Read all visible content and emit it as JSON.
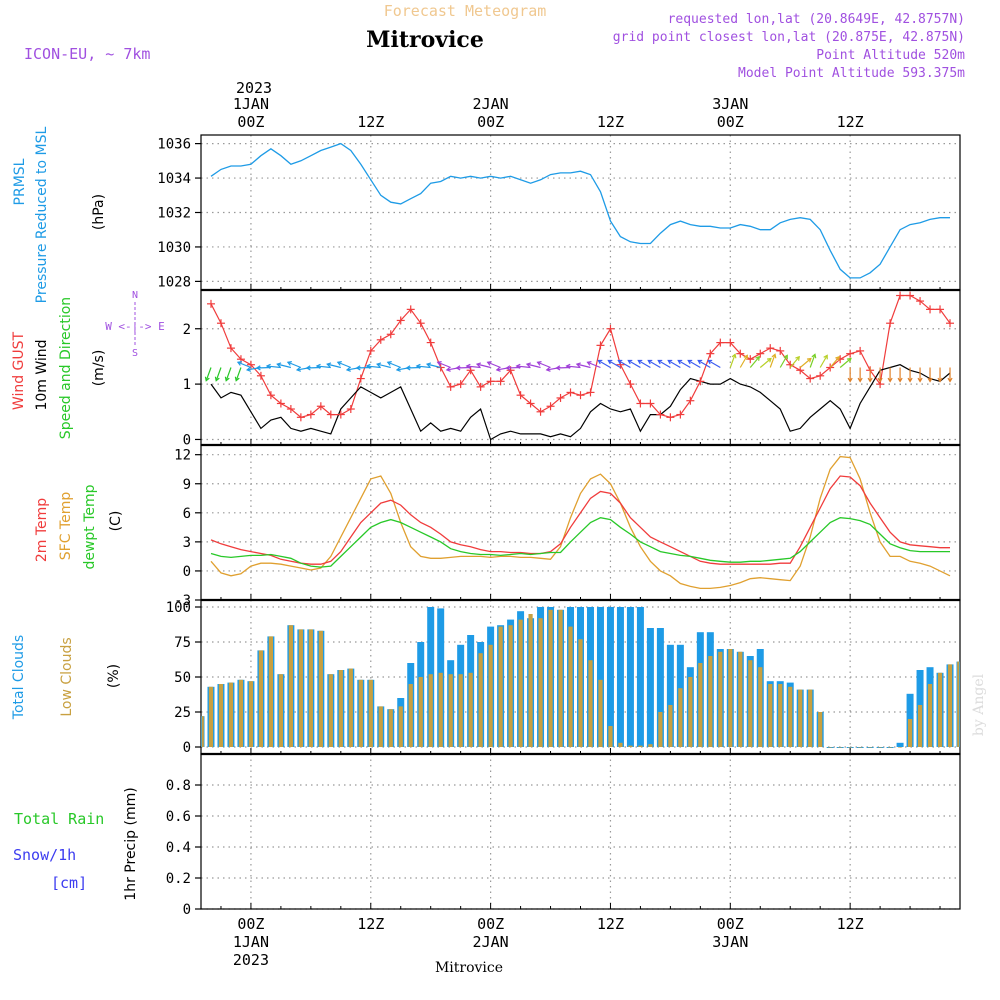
{
  "header": {
    "title": "Mitrovice",
    "subtitle": "Forecast Meteogram",
    "model": "ICON-EU, ~ 7km",
    "requested": "requested lon,lat (20.8649E, 42.8757N)",
    "gridpoint": "grid point closest lon,lat (20.875E, 42.875N)",
    "point_alt": "Point Altitude 520m",
    "model_alt": "Model Point Altitude 593.375m",
    "footer_name": "Mitrovice",
    "watermark": "by Angel"
  },
  "time_axis": {
    "year": "2023",
    "top_labels": [
      {
        "hour": 0,
        "l1": "1JAN",
        "l2": "00Z"
      },
      {
        "hour": 12,
        "l1": "",
        "l2": "12Z"
      },
      {
        "hour": 24,
        "l1": "2JAN",
        "l2": "00Z"
      },
      {
        "hour": 36,
        "l1": "",
        "l2": "12Z"
      },
      {
        "hour": 48,
        "l1": "3JAN",
        "l2": "00Z"
      },
      {
        "hour": 60,
        "l1": "",
        "l2": "12Z"
      }
    ],
    "bottom_labels": [
      {
        "hour": 0,
        "l1": "00Z",
        "l2": "1JAN",
        "l3": "2023"
      },
      {
        "hour": 12,
        "l1": "12Z",
        "l2": "",
        "l3": ""
      },
      {
        "hour": 24,
        "l1": "00Z",
        "l2": "2JAN",
        "l3": ""
      },
      {
        "hour": 36,
        "l1": "12Z",
        "l2": "",
        "l3": ""
      },
      {
        "hour": 48,
        "l1": "00Z",
        "l2": "3JAN",
        "l3": ""
      },
      {
        "hour": 60,
        "l1": "12Z",
        "l2": "",
        "l3": ""
      }
    ],
    "x_range_hours": [
      -5,
      71
    ]
  },
  "panels": {
    "pressure": {
      "label1": "PRMSL",
      "label2": "Pressure Reduced to MSL",
      "unit": "(hPa)"
    },
    "wind": {
      "label_gust": "Wind GUST",
      "label_wind": "10m Wind",
      "label_dir": "Speed and Direction",
      "unit": "(m/s)",
      "compass_n": "N",
      "compass_s": "S",
      "compass_ew": "W <-|-> E"
    },
    "temp": {
      "label_t2m": "2m Temp",
      "label_sfc": "SFC Temp",
      "label_dew": "dewpt Temp",
      "unit": "(C)"
    },
    "cloud": {
      "label_total": "Total Clouds",
      "label_low": "Low Clouds",
      "unit": "(%)"
    },
    "precip": {
      "label_rain": "Total  Rain",
      "label_snow1": "Snow/1h",
      "label_snow2": "[cm]",
      "unit": "1hr Precip (mm)"
    }
  },
  "colors": {
    "pressure": "#1e9be6",
    "gust": "#f03c3c",
    "wind10m": "#000000",
    "t2m": "#f03c3c",
    "sfc": "#e0a030",
    "dew": "#28c828",
    "total_cloud": "#1e9be6",
    "low_cloud": "#c8a040",
    "purple": "#a050e0",
    "rain_label": "#28c828",
    "snow_label": "#3c3cf0"
  },
  "chart_data": [
    {
      "type": "line",
      "name": "pressure",
      "ylim": [
        1027.5,
        1036.5
      ],
      "yticks": [
        1028,
        1030,
        1032,
        1034,
        1036
      ],
      "x": [
        -4,
        -3,
        -2,
        -1,
        0,
        1,
        2,
        3,
        4,
        5,
        6,
        7,
        8,
        9,
        10,
        11,
        12,
        13,
        14,
        15,
        16,
        17,
        18,
        19,
        20,
        21,
        22,
        23,
        24,
        25,
        26,
        27,
        28,
        29,
        30,
        31,
        32,
        33,
        34,
        35,
        36,
        37,
        38,
        39,
        40,
        41,
        42,
        43,
        44,
        45,
        46,
        47,
        48,
        49,
        50,
        51,
        52,
        53,
        54,
        55,
        56,
        57,
        58,
        59,
        60,
        61,
        62,
        63,
        64,
        65,
        66,
        67,
        68,
        69,
        70
      ],
      "y": [
        1034.1,
        1034.5,
        1034.7,
        1034.7,
        1034.8,
        1035.3,
        1035.7,
        1035.3,
        1034.8,
        1035.0,
        1035.3,
        1035.6,
        1035.8,
        1036.0,
        1035.6,
        1034.8,
        1033.9,
        1033.0,
        1032.6,
        1032.5,
        1032.8,
        1033.1,
        1033.7,
        1033.8,
        1034.1,
        1034.0,
        1034.1,
        1034.0,
        1034.1,
        1034.0,
        1034.1,
        1033.9,
        1033.7,
        1033.9,
        1034.2,
        1034.3,
        1034.3,
        1034.4,
        1034.2,
        1033.2,
        1031.5,
        1030.6,
        1030.3,
        1030.2,
        1030.2,
        1030.8,
        1031.3,
        1031.5,
        1031.3,
        1031.2,
        1031.2,
        1031.1,
        1031.1,
        1031.3,
        1031.2,
        1031.0,
        1031.0,
        1031.4,
        1031.6,
        1031.7,
        1031.6,
        1031.0,
        1029.8,
        1028.7,
        1028.2,
        1028.2,
        1028.5,
        1029.0,
        1030.0,
        1031.0,
        1031.3,
        1031.4,
        1031.6,
        1031.7,
        1031.7
      ]
    },
    {
      "type": "line",
      "name": "wind",
      "ylim": [
        -0.1,
        2.7
      ],
      "yticks": [
        0,
        1,
        2
      ],
      "x": [
        -4,
        -3,
        -2,
        -1,
        0,
        1,
        2,
        3,
        4,
        5,
        6,
        7,
        8,
        9,
        10,
        11,
        12,
        13,
        14,
        15,
        16,
        17,
        18,
        19,
        20,
        21,
        22,
        23,
        24,
        25,
        26,
        27,
        28,
        29,
        30,
        31,
        32,
        33,
        34,
        35,
        36,
        37,
        38,
        39,
        40,
        41,
        42,
        43,
        44,
        45,
        46,
        47,
        48,
        49,
        50,
        51,
        52,
        53,
        54,
        55,
        56,
        57,
        58,
        59,
        60,
        61,
        62,
        63,
        64,
        65,
        66,
        67,
        68,
        69,
        70
      ],
      "gust": [
        2.45,
        2.1,
        1.65,
        1.45,
        1.35,
        1.15,
        0.8,
        0.65,
        0.55,
        0.4,
        0.45,
        0.6,
        0.45,
        0.45,
        0.55,
        1.1,
        1.6,
        1.8,
        1.9,
        2.15,
        2.35,
        2.1,
        1.75,
        1.3,
        0.95,
        1.0,
        1.25,
        0.95,
        1.05,
        1.05,
        1.25,
        0.8,
        0.65,
        0.5,
        0.6,
        0.75,
        0.85,
        0.8,
        0.85,
        1.7,
        2.0,
        1.35,
        1.0,
        0.65,
        0.65,
        0.45,
        0.4,
        0.45,
        0.7,
        1.05,
        1.55,
        1.75,
        1.75,
        1.55,
        1.45,
        1.55,
        1.65,
        1.6,
        1.35,
        1.25,
        1.1,
        1.15,
        1.3,
        1.45,
        1.55,
        1.6,
        1.25,
        1.0,
        2.1,
        2.6,
        2.6,
        2.5,
        2.35,
        2.35,
        2.1
      ],
      "wind10m": [
        1.0,
        0.75,
        0.85,
        0.8,
        0.5,
        0.2,
        0.35,
        0.4,
        0.2,
        0.15,
        0.2,
        0.15,
        0.1,
        0.55,
        0.75,
        0.95,
        0.85,
        0.75,
        0.85,
        0.95,
        0.55,
        0.15,
        0.3,
        0.15,
        0.2,
        0.15,
        0.4,
        0.55,
        0.0,
        0.1,
        0.15,
        0.1,
        0.1,
        0.1,
        0.05,
        0.1,
        0.05,
        0.2,
        0.5,
        0.65,
        0.55,
        0.5,
        0.55,
        0.15,
        0.45,
        0.45,
        0.6,
        0.9,
        1.1,
        1.05,
        1.0,
        1.0,
        1.1,
        1.0,
        0.95,
        0.85,
        0.7,
        0.55,
        0.15,
        0.2,
        0.4,
        0.55,
        0.7,
        0.55,
        0.2,
        0.65,
        0.95,
        1.25,
        1.3,
        1.35,
        1.25,
        1.2,
        1.1,
        1.05,
        1.2
      ]
    },
    {
      "type": "line",
      "name": "temperature",
      "ylim": [
        -3,
        13
      ],
      "yticks": [
        -3,
        0,
        3,
        6,
        9,
        12
      ],
      "x": [
        -4,
        -3,
        -2,
        -1,
        0,
        1,
        2,
        3,
        4,
        5,
        6,
        7,
        8,
        9,
        10,
        11,
        12,
        13,
        14,
        15,
        16,
        17,
        18,
        19,
        20,
        21,
        22,
        23,
        24,
        25,
        26,
        27,
        28,
        29,
        30,
        31,
        32,
        33,
        34,
        35,
        36,
        37,
        38,
        39,
        40,
        41,
        42,
        43,
        44,
        45,
        46,
        47,
        48,
        49,
        50,
        51,
        52,
        53,
        54,
        55,
        56,
        57,
        58,
        59,
        60,
        61,
        62,
        63,
        64,
        65,
        66,
        67,
        68,
        69,
        70
      ],
      "t2m": [
        3.2,
        2.8,
        2.5,
        2.2,
        2.0,
        1.8,
        1.6,
        1.2,
        1.0,
        0.8,
        0.7,
        0.7,
        1.0,
        2.0,
        3.5,
        5.0,
        6.0,
        7.0,
        7.3,
        6.8,
        5.8,
        5.0,
        4.5,
        3.8,
        3.0,
        2.7,
        2.5,
        2.2,
        2.0,
        2.0,
        1.9,
        1.9,
        1.8,
        1.8,
        2.0,
        2.8,
        4.5,
        6.0,
        7.5,
        8.2,
        8.0,
        7.0,
        5.5,
        4.5,
        3.5,
        3.0,
        2.5,
        2.0,
        1.5,
        1.0,
        0.8,
        0.7,
        0.7,
        0.7,
        0.7,
        0.7,
        0.7,
        0.8,
        0.8,
        2.5,
        4.5,
        6.5,
        8.5,
        9.8,
        9.7,
        8.8,
        7.0,
        5.5,
        4.0,
        3.0,
        2.7,
        2.6,
        2.5,
        2.4,
        2.4
      ],
      "sfc": [
        1.0,
        -0.2,
        -0.5,
        -0.3,
        0.5,
        0.8,
        0.8,
        0.7,
        0.5,
        0.3,
        0.1,
        0.3,
        1.5,
        3.5,
        5.5,
        7.5,
        9.5,
        9.8,
        8.0,
        5.0,
        2.5,
        1.5,
        1.3,
        1.3,
        1.4,
        1.5,
        1.5,
        1.5,
        1.4,
        1.5,
        1.5,
        1.4,
        1.4,
        1.3,
        1.2,
        2.5,
        5.5,
        8.0,
        9.5,
        10.0,
        9.0,
        7.0,
        4.5,
        2.5,
        1.0,
        0.0,
        -0.5,
        -1.3,
        -1.6,
        -1.8,
        -1.8,
        -1.7,
        -1.5,
        -1.2,
        -0.8,
        -0.7,
        -0.8,
        -0.9,
        -1.0,
        0.5,
        3.5,
        7.5,
        10.5,
        11.8,
        11.7,
        9.5,
        6.0,
        3.0,
        1.5,
        1.5,
        1.0,
        0.8,
        0.5,
        0.0,
        -0.5
      ],
      "dew": [
        1.8,
        1.5,
        1.4,
        1.5,
        1.6,
        1.6,
        1.7,
        1.5,
        1.3,
        0.8,
        0.5,
        0.4,
        0.5,
        1.5,
        2.5,
        3.5,
        4.5,
        5.0,
        5.3,
        5.0,
        4.5,
        4.0,
        3.5,
        3.0,
        2.3,
        2.0,
        1.8,
        1.7,
        1.7,
        1.6,
        1.7,
        1.8,
        1.7,
        1.8,
        1.9,
        1.9,
        3.0,
        4.0,
        5.0,
        5.5,
        5.3,
        4.5,
        3.8,
        3.0,
        2.5,
        2.0,
        1.8,
        1.6,
        1.5,
        1.3,
        1.1,
        1.0,
        0.9,
        0.9,
        1.0,
        1.0,
        1.1,
        1.2,
        1.3,
        2.0,
        3.0,
        4.0,
        5.0,
        5.5,
        5.4,
        5.2,
        4.8,
        3.8,
        2.8,
        2.4,
        2.1,
        2.0,
        2.0,
        2.0,
        2.0
      ]
    },
    {
      "type": "bar",
      "name": "clouds",
      "ylim": [
        -5,
        105
      ],
      "yticks": [
        0,
        25,
        50,
        75,
        100
      ],
      "x": [
        -5,
        -4,
        -3,
        -2,
        -1,
        0,
        1,
        2,
        3,
        4,
        5,
        6,
        7,
        8,
        9,
        10,
        11,
        12,
        13,
        14,
        15,
        16,
        17,
        18,
        19,
        20,
        21,
        22,
        23,
        24,
        25,
        26,
        27,
        28,
        29,
        30,
        31,
        32,
        33,
        34,
        35,
        36,
        37,
        38,
        39,
        40,
        41,
        42,
        43,
        44,
        45,
        46,
        47,
        48,
        49,
        50,
        51,
        52,
        53,
        54,
        55,
        56,
        57,
        58,
        59,
        60,
        61,
        62,
        63,
        64,
        65,
        66,
        67,
        68,
        69,
        70,
        71
      ],
      "total": [
        22,
        43,
        45,
        46,
        48,
        47,
        69,
        79,
        52,
        87,
        84,
        84,
        83,
        52,
        55,
        56,
        48,
        48,
        29,
        27,
        35,
        60,
        75,
        100,
        99,
        62,
        73,
        80,
        75,
        86,
        87,
        91,
        97,
        92,
        100,
        100,
        98,
        100,
        100,
        100,
        100,
        100,
        100,
        100,
        100,
        85,
        85,
        73,
        73,
        57,
        82,
        82,
        70,
        70,
        68,
        65,
        70,
        47,
        47,
        46,
        41,
        41,
        25,
        0,
        0,
        0,
        0,
        0,
        0,
        0,
        3,
        38,
        55,
        57,
        53,
        59,
        61
      ],
      "low": [
        22,
        43,
        45,
        46,
        48,
        47,
        69,
        79,
        52,
        87,
        84,
        84,
        83,
        52,
        55,
        56,
        48,
        48,
        29,
        27,
        29,
        45,
        50,
        52,
        53,
        52,
        52,
        53,
        67,
        73,
        86,
        87,
        91,
        95,
        92,
        98,
        98,
        86,
        77,
        62,
        48,
        15,
        3,
        1,
        1,
        2,
        25,
        30,
        42,
        50,
        60,
        65,
        68,
        70,
        68,
        62,
        57,
        45,
        45,
        43,
        41,
        41,
        25,
        0,
        0,
        0,
        0,
        0,
        0,
        0,
        0,
        20,
        30,
        45,
        53,
        59,
        61
      ]
    },
    {
      "type": "bar",
      "name": "precipitation",
      "ylim": [
        0,
        1.0
      ],
      "yticks": [
        0,
        0.2,
        0.4,
        0.6,
        0.8
      ],
      "values": []
    }
  ]
}
